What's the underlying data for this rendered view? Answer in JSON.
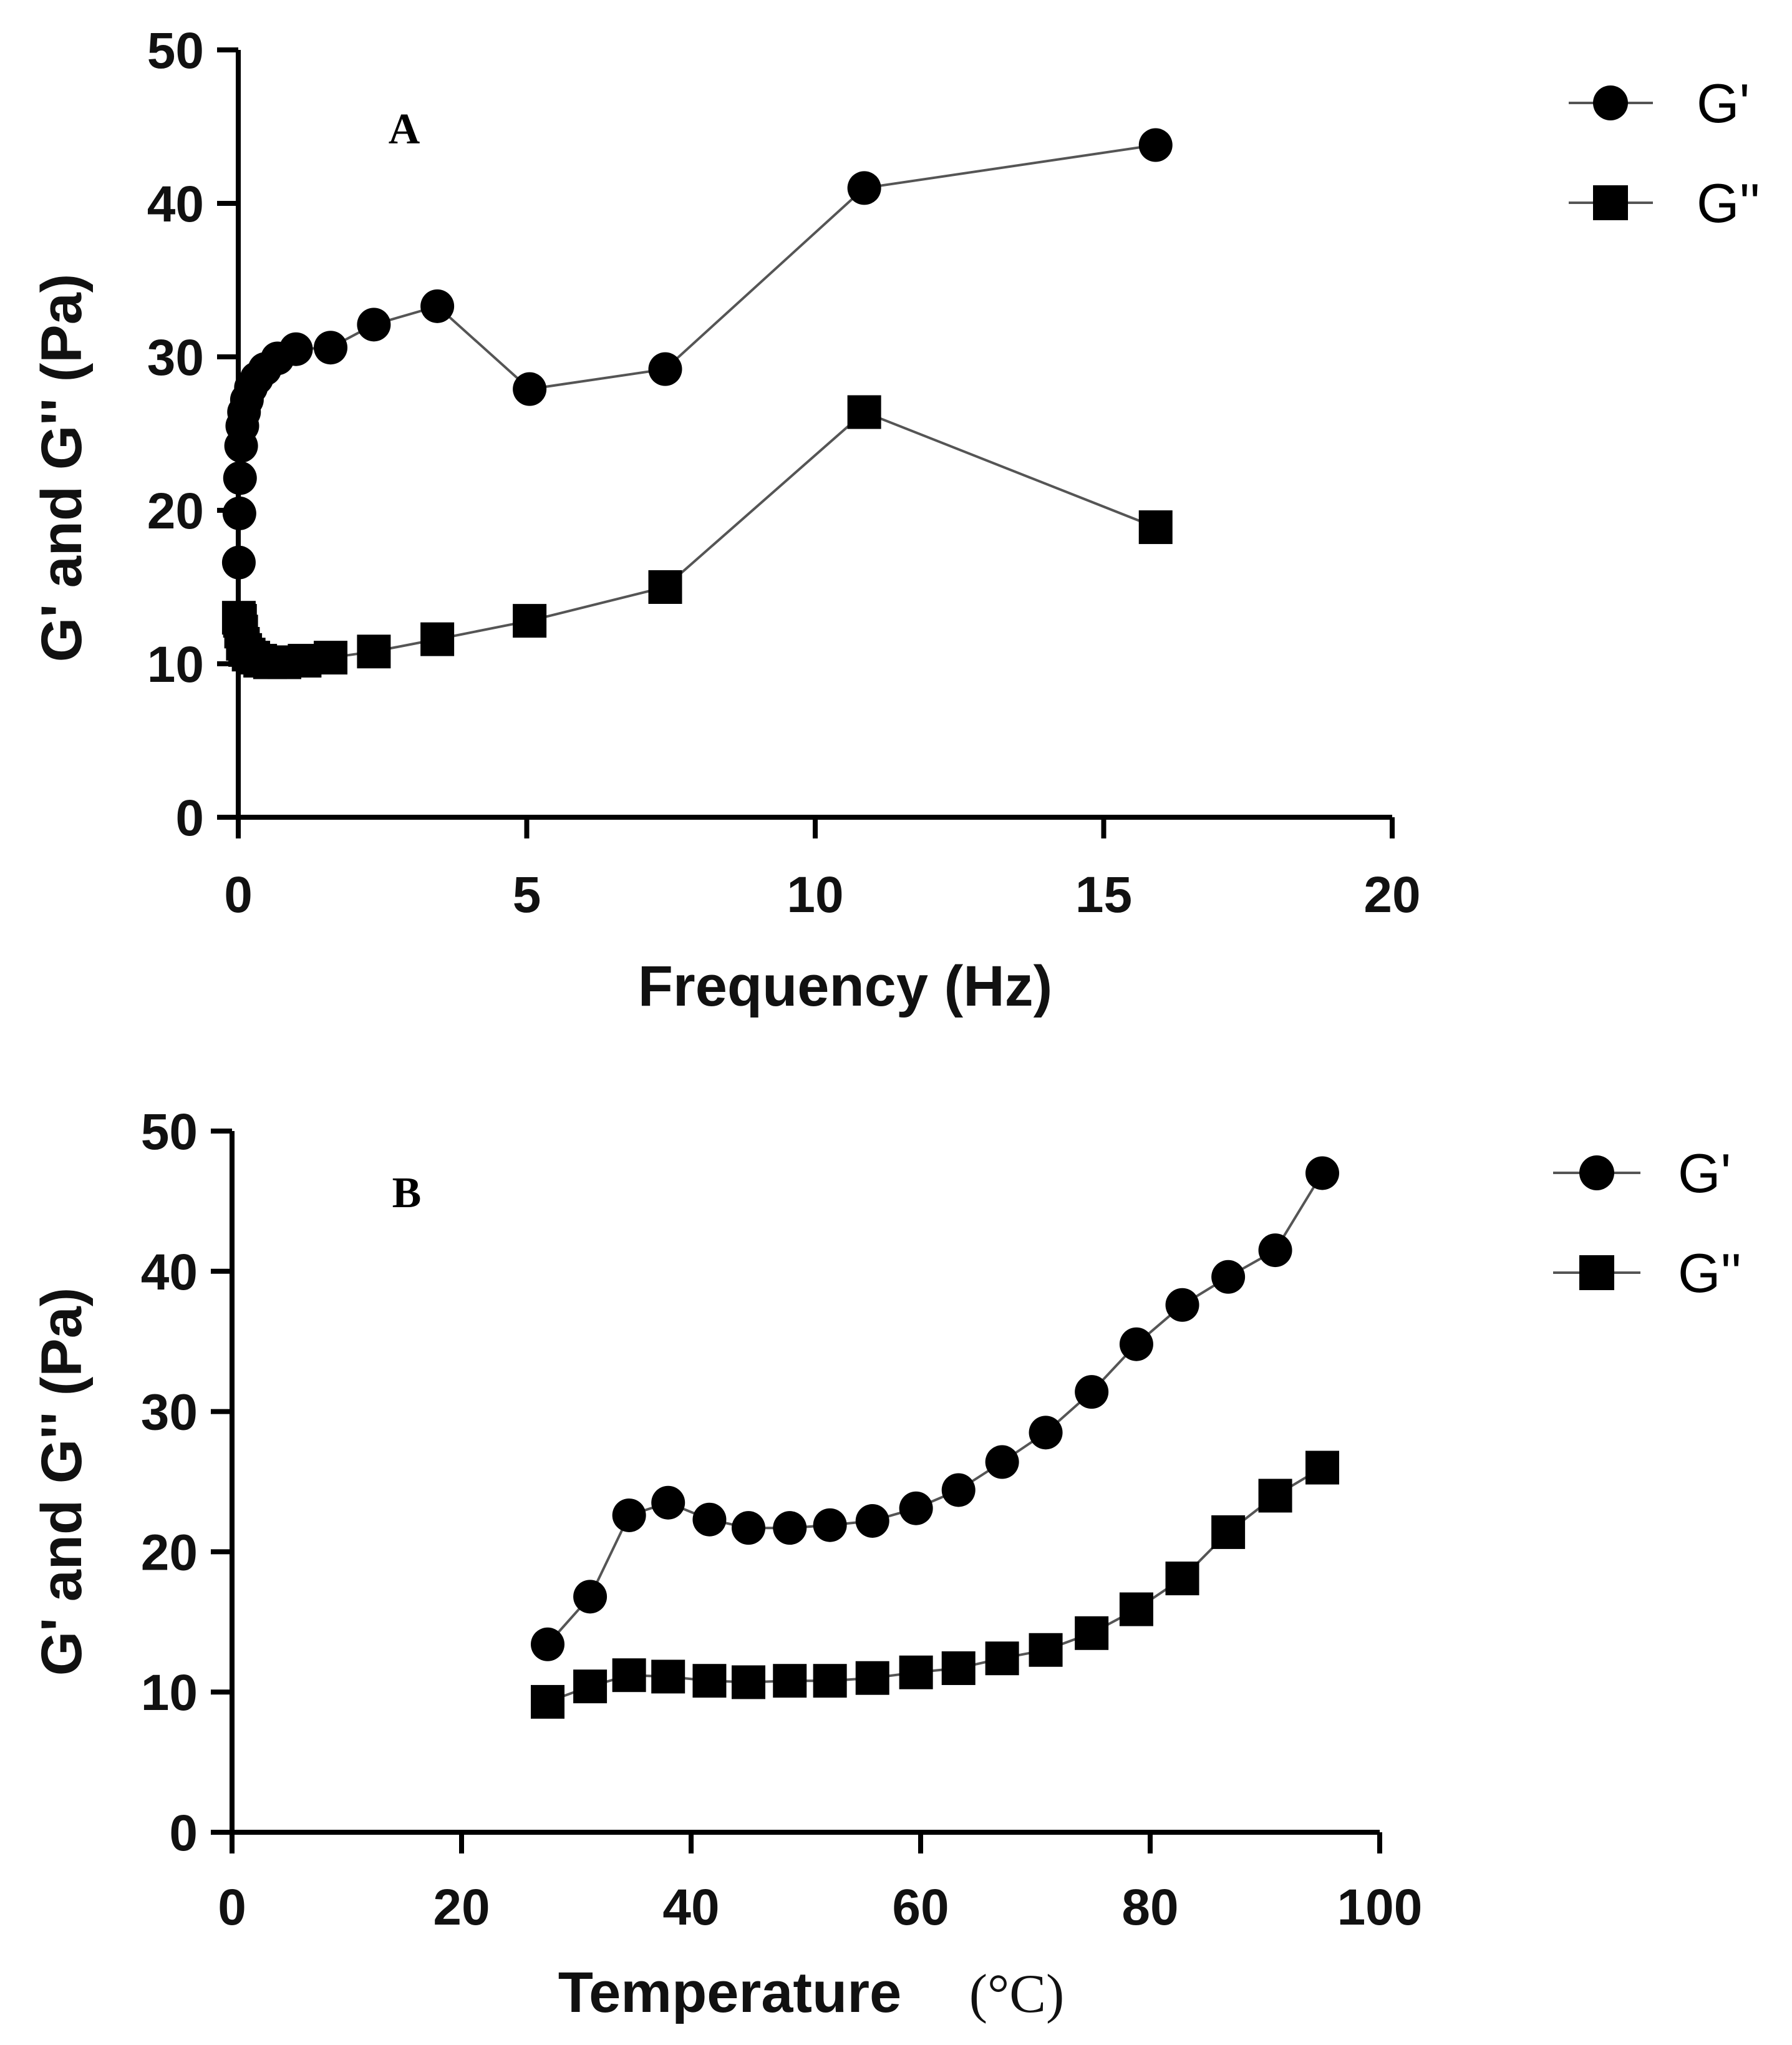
{
  "colors": {
    "line": "#555555",
    "marker": "#000000",
    "axis": "#000000",
    "background": "#ffffff"
  },
  "chart_data": [
    {
      "type": "line",
      "panel_label": "A",
      "xlabel": "Frequency (Hz)",
      "ylabel": "G' and G'' (Pa)",
      "xlim": [
        0,
        20
      ],
      "ylim": [
        0,
        50
      ],
      "x_ticks": [
        0,
        5,
        10,
        15,
        20
      ],
      "x_tick_labels": [
        "0",
        "5",
        "10",
        "15",
        "20"
      ],
      "y_ticks": [
        0,
        10,
        20,
        30,
        40,
        50
      ],
      "y_tick_labels": [
        "0",
        "10",
        "20",
        "30",
        "40",
        "50"
      ],
      "grid": false,
      "legend_position": "right",
      "series": [
        {
          "name": "G'",
          "marker": "circle",
          "points": [
            [
              0.01,
              16.6
            ],
            [
              0.02,
              19.8
            ],
            [
              0.03,
              22.1
            ],
            [
              0.05,
              24.2
            ],
            [
              0.07,
              25.5
            ],
            [
              0.1,
              26.4
            ],
            [
              0.15,
              27.2
            ],
            [
              0.22,
              28.0
            ],
            [
              0.32,
              28.6
            ],
            [
              0.46,
              29.2
            ],
            [
              0.68,
              29.9
            ],
            [
              1.0,
              30.5
            ],
            [
              1.6,
              30.6
            ],
            [
              2.35,
              32.1
            ],
            [
              3.45,
              33.3
            ],
            [
              5.05,
              27.9
            ],
            [
              7.4,
              29.2
            ],
            [
              10.85,
              41.0
            ],
            [
              15.9,
              43.8
            ]
          ]
        },
        {
          "name": "G''",
          "marker": "square",
          "points": [
            [
              0.01,
              13.0
            ],
            [
              0.03,
              12.8
            ],
            [
              0.05,
              12.1
            ],
            [
              0.08,
              11.3
            ],
            [
              0.12,
              10.9
            ],
            [
              0.18,
              10.6
            ],
            [
              0.26,
              10.4
            ],
            [
              0.38,
              10.2
            ],
            [
              0.55,
              10.1
            ],
            [
              0.8,
              10.1
            ],
            [
              1.15,
              10.2
            ],
            [
              1.6,
              10.4
            ],
            [
              2.35,
              10.8
            ],
            [
              3.45,
              11.6
            ],
            [
              5.05,
              12.8
            ],
            [
              7.4,
              15.0
            ],
            [
              10.85,
              26.4
            ],
            [
              15.9,
              18.9
            ]
          ]
        }
      ]
    },
    {
      "type": "line",
      "panel_label": "B",
      "xlabel": "Temperature",
      "xlabel_unit": "(°C)",
      "ylabel": "G' and G'' (Pa)",
      "xlim": [
        0,
        100
      ],
      "ylim": [
        0,
        50
      ],
      "x_ticks": [
        0,
        20,
        40,
        60,
        80,
        100
      ],
      "x_tick_labels": [
        "0",
        "20",
        "40",
        "60",
        "80",
        "100"
      ],
      "y_ticks": [
        0,
        10,
        20,
        30,
        40,
        50
      ],
      "y_tick_labels": [
        "0",
        "10",
        "20",
        "30",
        "40",
        "50"
      ],
      "grid": false,
      "legend_position": "right",
      "series": [
        {
          "name": "G'",
          "marker": "circle",
          "points": [
            [
              27.5,
              13.4
            ],
            [
              31.2,
              16.8
            ],
            [
              34.6,
              22.6
            ],
            [
              38.0,
              23.5
            ],
            [
              41.6,
              22.3
            ],
            [
              45.0,
              21.7
            ],
            [
              48.6,
              21.7
            ],
            [
              52.1,
              21.9
            ],
            [
              55.8,
              22.2
            ],
            [
              59.6,
              23.1
            ],
            [
              63.3,
              24.4
            ],
            [
              67.1,
              26.4
            ],
            [
              70.9,
              28.5
            ],
            [
              74.9,
              31.4
            ],
            [
              78.8,
              34.8
            ],
            [
              82.8,
              37.6
            ],
            [
              86.8,
              39.6
            ],
            [
              90.9,
              41.5
            ],
            [
              95.0,
              47.0
            ]
          ]
        },
        {
          "name": "G''",
          "marker": "square",
          "points": [
            [
              27.5,
              9.3
            ],
            [
              31.2,
              10.4
            ],
            [
              34.6,
              11.2
            ],
            [
              38.0,
              11.1
            ],
            [
              41.6,
              10.8
            ],
            [
              45.0,
              10.7
            ],
            [
              48.6,
              10.8
            ],
            [
              52.1,
              10.8
            ],
            [
              55.8,
              11.0
            ],
            [
              59.6,
              11.4
            ],
            [
              63.3,
              11.7
            ],
            [
              67.1,
              12.4
            ],
            [
              70.9,
              13.0
            ],
            [
              74.9,
              14.2
            ],
            [
              78.8,
              15.9
            ],
            [
              82.8,
              18.1
            ],
            [
              86.8,
              21.4
            ],
            [
              90.9,
              24.0
            ],
            [
              95.0,
              26.0
            ]
          ]
        }
      ]
    }
  ]
}
